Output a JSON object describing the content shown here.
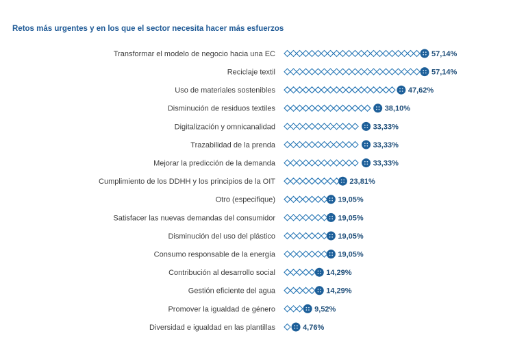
{
  "chart_data": {
    "type": "lollipop",
    "title": "Retos más urgentes y en los que el sector necesita hacer más esfuerzos",
    "categories": [
      "Transformar el modelo de negocio hacia una EC",
      "Reciclaje textil",
      "Uso de materiales sostenibles",
      "Disminución de residuos textiles",
      "Digitalización y omnicanalidad",
      "Trazabilidad de la prenda",
      "Mejorar la predicción de la demanda",
      "Cumplimiento de los DDHH y los principios de la OIT",
      "Otro (especifique)",
      "Satisfacer las nuevas demandas del consumidor",
      "Disminución del uso del plástico",
      "Consumo responsable de la energía",
      "Contribución al desarrollo social",
      "Gestión eficiente del agua",
      "Promover la igualdad de género",
      "Diversidad e igualdad en las plantillas"
    ],
    "values": [
      57.14,
      57.14,
      47.62,
      38.1,
      33.33,
      33.33,
      33.33,
      23.81,
      19.05,
      19.05,
      19.05,
      19.05,
      14.29,
      14.29,
      9.52,
      4.76
    ],
    "value_labels": [
      "57,14%",
      "57,14%",
      "47,62%",
      "38,10%",
      "33,33%",
      "33,33%",
      "33,33%",
      "23,81%",
      "19,05%",
      "19,05%",
      "19,05%",
      "19,05%",
      "14,29%",
      "14,29%",
      "9,52%",
      "4,76%"
    ],
    "color": "#2a78b6"
  }
}
